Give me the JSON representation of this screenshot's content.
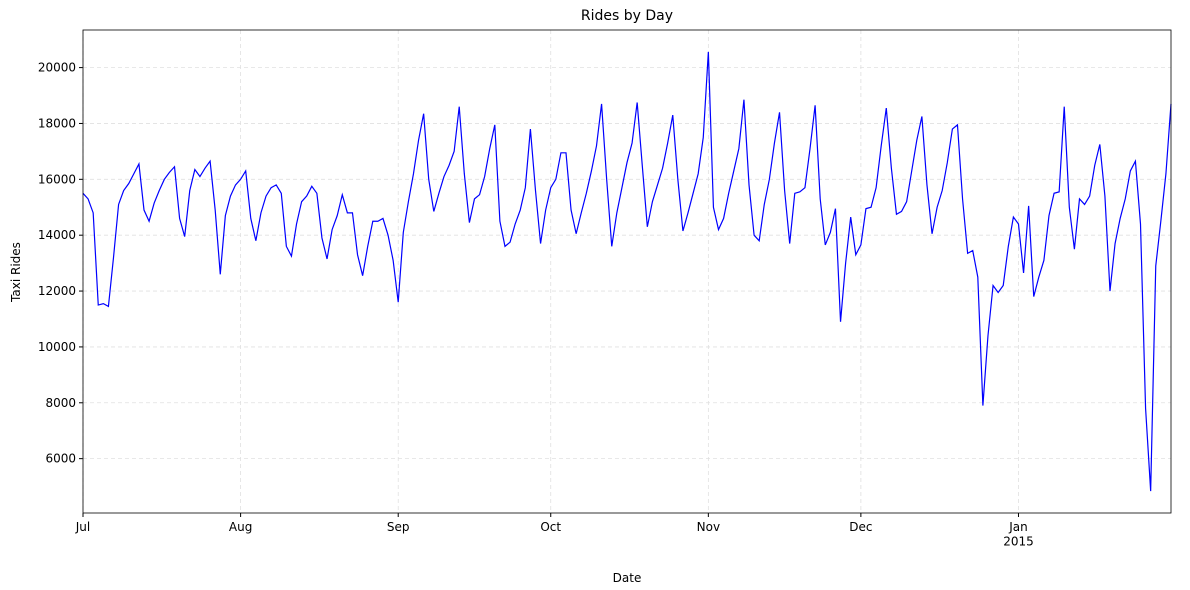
{
  "chart_data": {
    "type": "line",
    "title": "Rides by Day",
    "x_label": "Date",
    "y_label": "Taxi Rides",
    "color": "#0000ff",
    "grid": true,
    "categories": [
      "Jul",
      null,
      null,
      null,
      null,
      null,
      null,
      null,
      null,
      null,
      null,
      null,
      null,
      null,
      null,
      null,
      null,
      null,
      null,
      null,
      null,
      null,
      null,
      null,
      null,
      null,
      null,
      null,
      null,
      null,
      null,
      "Aug",
      null,
      null,
      null,
      null,
      null,
      null,
      null,
      null,
      null,
      null,
      null,
      null,
      null,
      null,
      null,
      null,
      null,
      null,
      null,
      null,
      null,
      null,
      null,
      null,
      null,
      null,
      null,
      null,
      null,
      null,
      "Sep",
      null,
      null,
      null,
      null,
      null,
      null,
      null,
      null,
      null,
      null,
      null,
      null,
      null,
      null,
      null,
      null,
      null,
      null,
      null,
      null,
      null,
      null,
      null,
      null,
      null,
      null,
      null,
      null,
      null,
      "Oct",
      null,
      null,
      null,
      null,
      null,
      null,
      null,
      null,
      null,
      null,
      null,
      null,
      null,
      null,
      null,
      null,
      null,
      null,
      null,
      null,
      null,
      null,
      null,
      null,
      null,
      null,
      null,
      null,
      null,
      null,
      "Nov",
      null,
      null,
      null,
      null,
      null,
      null,
      null,
      null,
      null,
      null,
      null,
      null,
      null,
      null,
      null,
      null,
      null,
      null,
      null,
      null,
      null,
      null,
      null,
      null,
      null,
      null,
      null,
      null,
      null,
      "Dec",
      null,
      null,
      null,
      null,
      null,
      null,
      null,
      null,
      null,
      null,
      null,
      null,
      null,
      null,
      null,
      null,
      null,
      null,
      null,
      null,
      null,
      null,
      null,
      null,
      null,
      null,
      null,
      null,
      null,
      null,
      "Jan\n2015",
      null,
      null,
      null,
      null,
      null,
      null,
      null,
      null,
      null,
      null,
      null,
      null,
      null,
      null,
      null,
      null,
      null,
      null,
      null,
      null,
      null,
      null,
      null,
      null,
      null,
      null,
      null,
      null,
      null,
      null
    ],
    "values": [
      15500,
      15300,
      14800,
      11500,
      11550,
      11450,
      13200,
      15100,
      15600,
      15850,
      16200,
      16550,
      14900,
      14500,
      15150,
      15600,
      16000,
      16250,
      16450,
      14600,
      13950,
      15600,
      16350,
      16100,
      16400,
      16650,
      14900,
      12600,
      14700,
      15400,
      15800,
      16000,
      16300,
      14600,
      13800,
      14800,
      15400,
      15700,
      15800,
      15500,
      13600,
      13250,
      14400,
      15200,
      15400,
      15750,
      15500,
      13900,
      13150,
      14200,
      14700,
      15450,
      14800,
      14800,
      13300,
      12550,
      13600,
      14500,
      14500,
      14600,
      14000,
      13100,
      11600,
      14100,
      15200,
      16200,
      17400,
      18350,
      16000,
      14850,
      15500,
      16100,
      16500,
      17000,
      18600,
      16200,
      14450,
      15300,
      15450,
      16100,
      17100,
      17950,
      14500,
      13600,
      13750,
      14400,
      14900,
      15700,
      17800,
      15600,
      13700,
      14900,
      15700,
      16000,
      16950,
      16950,
      14900,
      14050,
      14800,
      15500,
      16300,
      17200,
      18700,
      16000,
      13600,
      14800,
      15700,
      16600,
      17300,
      18750,
      16500,
      14300,
      15200,
      15800,
      16400,
      17300,
      18300,
      16000,
      14150,
      14800,
      15500,
      16200,
      17500,
      20560,
      15000,
      14200,
      14600,
      15500,
      16300,
      17100,
      18850,
      15800,
      14000,
      13800,
      15100,
      16000,
      17300,
      18400,
      15600,
      13700,
      15500,
      15550,
      15700,
      17100,
      18650,
      15300,
      13650,
      14100,
      14950,
      10900,
      13000,
      14650,
      13300,
      13650,
      14950,
      15000,
      15700,
      17200,
      18550,
      16400,
      14750,
      14850,
      15200,
      16300,
      17400,
      18250,
      15800,
      14050,
      15000,
      15600,
      16600,
      17800,
      17950,
      15300,
      13350,
      13450,
      12500,
      7900,
      10400,
      12200,
      11950,
      12200,
      13600,
      14650,
      14400,
      12650,
      15050,
      11800,
      12500,
      13100,
      14700,
      15500,
      15550,
      18600,
      15000,
      13500,
      15300,
      15100,
      15400,
      16500,
      17250,
      15400,
      12000,
      13700,
      14600,
      15300,
      16300,
      16650,
      14400,
      7800,
      4840,
      12900,
      14500,
      16200,
      18700
    ],
    "ylim": [
      4054,
      21346
    ],
    "yticks": [
      6000,
      8000,
      10000,
      12000,
      14000,
      16000,
      18000,
      20000
    ]
  }
}
